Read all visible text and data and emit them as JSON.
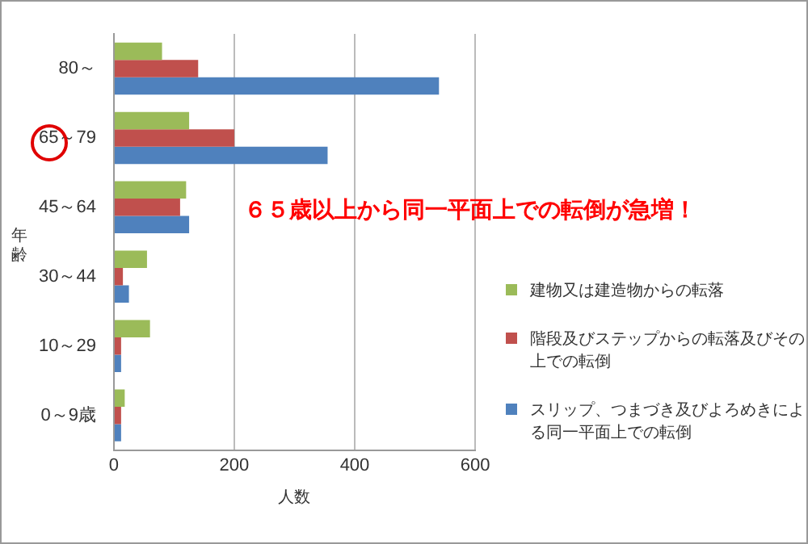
{
  "chart_data": {
    "type": "bar",
    "orientation": "horizontal",
    "xlabel": "人数",
    "ylabel": "年齢",
    "categories": [
      "80～",
      "65～79",
      "45～64",
      "30～44",
      "10～29",
      "0～9歳"
    ],
    "series": [
      {
        "name": "建物又は建造物からの転落",
        "color": "#9bbb59",
        "values": [
          80,
          125,
          120,
          55,
          60,
          18
        ]
      },
      {
        "name": "階段及びステップからの転落及びその上での転倒",
        "color": "#c0504d",
        "values": [
          140,
          200,
          110,
          15,
          12,
          12
        ]
      },
      {
        "name": "スリップ、つまづき及びよろめきによる同一平面上での転倒",
        "color": "#4f81bd",
        "values": [
          540,
          355,
          125,
          25,
          12,
          12
        ]
      }
    ],
    "xlim": [
      0,
      600
    ],
    "xticks": [
      0,
      200,
      400,
      600
    ],
    "grid": "x",
    "legend": "right",
    "annotations": [
      "６５歳以上から同一平面上での転倒が急増！"
    ]
  }
}
